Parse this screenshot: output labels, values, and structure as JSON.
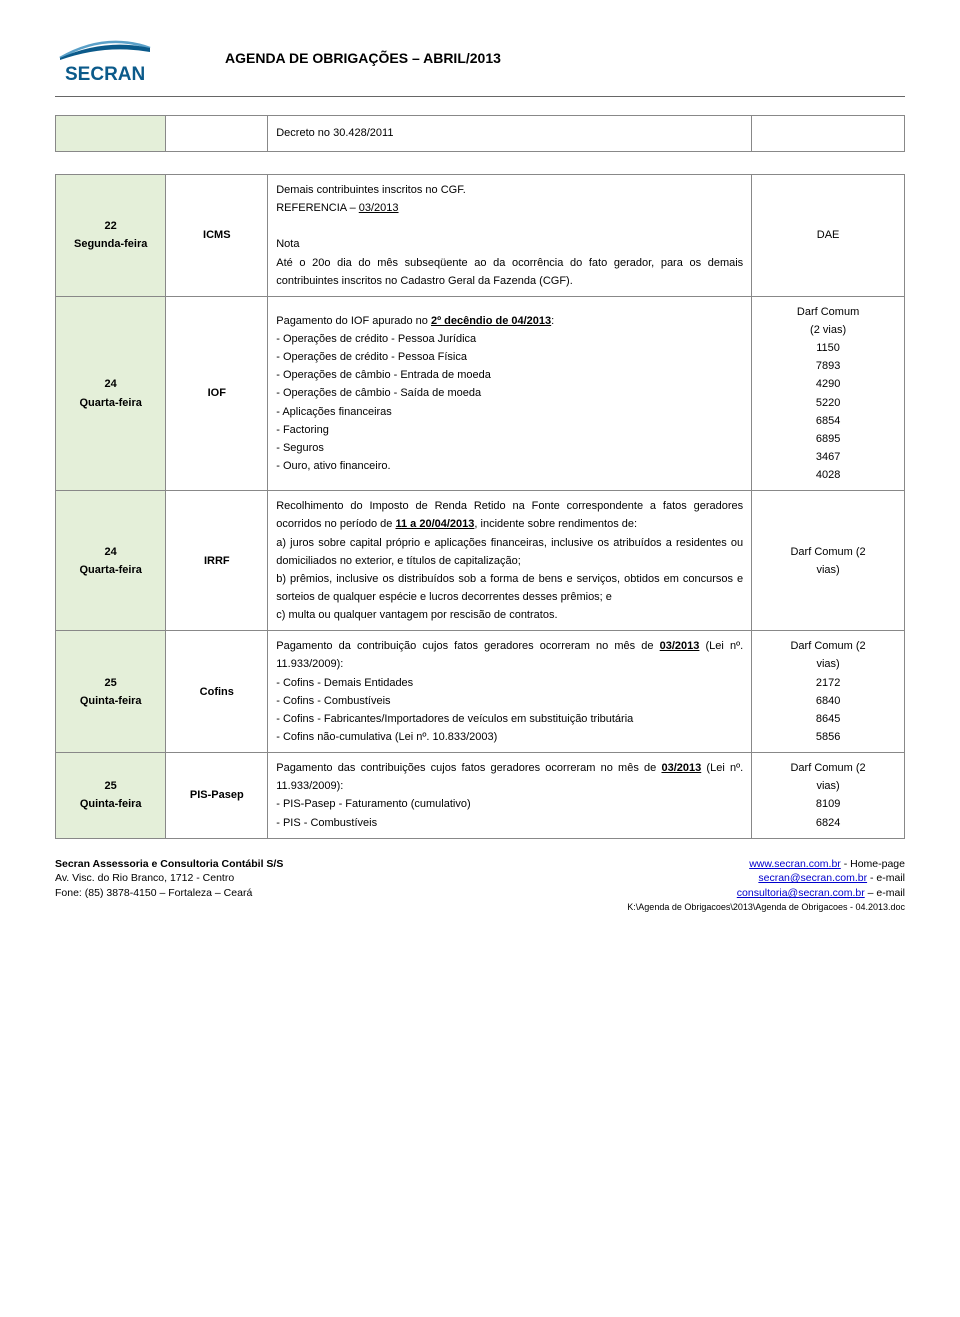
{
  "doc": {
    "title": "AGENDA DE OBRIGAÇÕES – ABRIL/2013",
    "logo_text": "SECRAN",
    "logo_primary": "#0b5a8a",
    "logo_accent": "#5aa0c8"
  },
  "colors": {
    "green_bg": "#e4efd9",
    "border": "#888888",
    "link": "#0000cc",
    "hr": "#666666"
  },
  "first_row": {
    "decree": "Decreto no 30.428/2011"
  },
  "rows": [
    {
      "date_num": "22",
      "date_day": "Segunda-feira",
      "tax": "ICMS",
      "body": "Demais contribuintes inscritos no CGF.\nREFERENCIA – <u>03/2013</u>\n\nNota\nAté o 20o dia do mês subseqüente ao da ocorrência do fato gerador, para os demais contribuintes inscritos no Cadastro Geral da Fazenda (CGF).",
      "right": "DAE"
    },
    {
      "date_num": "24",
      "date_day": "Quarta-feira",
      "tax": "IOF",
      "body": "Pagamento do IOF apurado no <u><b>2º decêndio de 04/2013</b></u>:\n- Operações de crédito - Pessoa Jurídica\n- Operações de crédito - Pessoa Física\n- Operações de câmbio - Entrada de moeda\n- Operações de câmbio - Saída de moeda\n- Aplicações financeiras\n- Factoring\n- Seguros\n- Ouro, ativo financeiro.",
      "right": "Darf Comum\n(2 vias)\n1150\n7893\n4290\n5220\n6854\n6895\n3467\n4028"
    },
    {
      "date_num": "24",
      "date_day": "Quarta-feira",
      "tax": "IRRF",
      "body": "Recolhimento do Imposto de Renda Retido na Fonte correspondente a fatos geradores ocorridos no período de <u><b>11 a 20/04/2013</b></u>, incidente sobre rendimentos de:\na) juros sobre capital próprio e aplicações financeiras, inclusive os atribuídos a residentes ou domiciliados no exterior, e títulos de capitalização;\nb) prêmios, inclusive os distribuídos sob a forma de bens e serviços, obtidos em concursos e sorteios de qualquer espécie e lucros decorrentes desses prêmios; e\nc) multa ou qualquer vantagem por rescisão de contratos.",
      "right": "Darf Comum (2\nvias)"
    },
    {
      "date_num": "25",
      "date_day": "Quinta-feira",
      "tax": "Cofins",
      "body": "Pagamento da contribuição cujos fatos geradores ocorreram no mês de <u><b>03/2013</b></u> (Lei nº. 11.933/2009):\n- Cofins - Demais Entidades\n- Cofins - Combustíveis\n- Cofins - Fabricantes/Importadores de veículos em substituição tributária\n- Cofins não-cumulativa (Lei nº. 10.833/2003)",
      "right": "Darf Comum (2\nvias)\n2172\n6840\n8645\n5856"
    },
    {
      "date_num": "25",
      "date_day": "Quinta-feira",
      "tax": "PIS-Pasep",
      "body": "Pagamento das contribuições cujos fatos geradores ocorreram no mês de <u><b>03/2013</b></u> (Lei nº. 11.933/2009):\n- PIS-Pasep - Faturamento (cumulativo)\n- PIS - Combustíveis",
      "right": "Darf Comum (2\nvias)\n8109\n6824"
    }
  ],
  "footer": {
    "left_line1": "Secran Assessoria e Consultoria Contábil S/S",
    "left_line2": "Av. Visc. do Rio Branco, 1712 - Centro",
    "left_line3": "Fone: (85) 3878-4150 – Fortaleza – Ceará",
    "right_line1_text": "www.secran.com.br",
    "right_line1_suffix": " - Home-page",
    "right_line2_text": "secran@secran.com.br",
    "right_line2_suffix": " - e-mail",
    "right_line3_text": "consultoria@secran.com.br",
    "right_line3_suffix": " – e-mail",
    "filepath": "K:\\Agenda de Obrigacoes\\2013\\Agenda de Obrigacoes - 04.2013.doc"
  }
}
